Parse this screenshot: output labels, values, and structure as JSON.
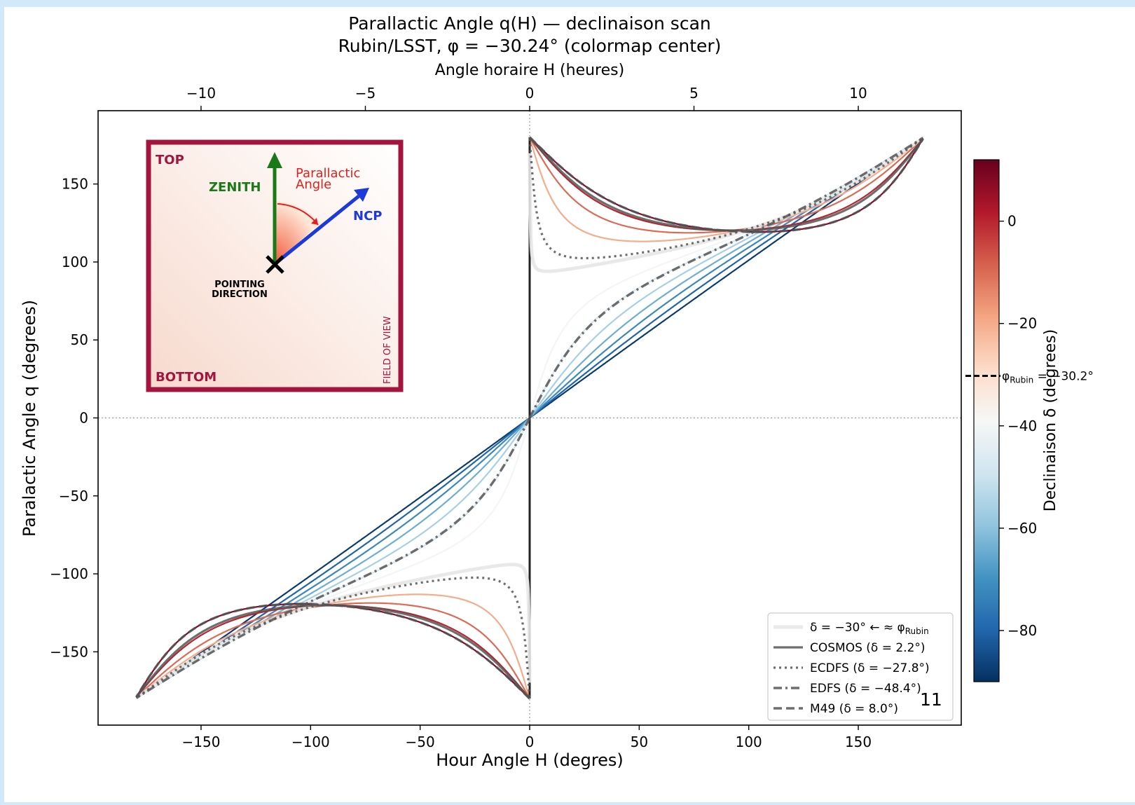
{
  "chart_data": {
    "type": "line",
    "title_line1": "Parallactic Angle q(H) — declinaison scan",
    "title_line2": "Rubin/LSST, φ = −30.24° (colormap center)",
    "top_xlabel": "Angle horaire H (heures)",
    "xlabel": "Hour Angle  H (degres)",
    "ylabel": "Paralactic Angle q (degrees)",
    "xlim": [
      -197,
      197
    ],
    "ylim": [
      -197,
      197
    ],
    "x_ticks": [
      -150,
      -100,
      -50,
      0,
      50,
      100,
      150
    ],
    "x_tick_labels": [
      "−150",
      "−100",
      "−50",
      "0",
      "50",
      "100",
      "150"
    ],
    "y_ticks": [
      -150,
      -100,
      -50,
      0,
      50,
      100,
      150
    ],
    "y_tick_labels": [
      "−150",
      "−100",
      "−50",
      "0",
      "50",
      "100",
      "150"
    ],
    "top_ticks_hours": [
      -10,
      -5,
      0,
      5,
      10
    ],
    "top_tick_labels": [
      "−10",
      "−5",
      "0",
      "5",
      "10"
    ],
    "latitude_deg": -30.24,
    "grid": false,
    "reference_lines": {
      "x0": true,
      "y0": true
    },
    "series_declinations": [
      -88,
      -80,
      -72,
      -64,
      -56,
      -48,
      -40,
      -30,
      -20,
      -10,
      0,
      8
    ],
    "highlighted_series": [
      {
        "name": "δ = −30° ← ≈ φ",
        "name_sub": "Rubin",
        "dec": -30,
        "style": "thick-faint"
      },
      {
        "name": "COSMOS (δ = 2.2°)",
        "dec": 2.2,
        "style": "solid"
      },
      {
        "name": "ECDFS (δ = −27.8°)",
        "dec": -27.8,
        "style": "dotted"
      },
      {
        "name": "EDFS (δ = −48.4°)",
        "dec": -48.4,
        "style": "dashdot"
      },
      {
        "name": "M49 (δ = 8.0°)",
        "dec": 8.0,
        "style": "dashed"
      }
    ],
    "legend_position": "lower-right",
    "colorbar": {
      "label": "Declinaison δ (degrees)",
      "range": [
        -90,
        12
      ],
      "ticks": [
        0,
        -20,
        -40,
        -60,
        -80
      ],
      "tick_labels": [
        "0",
        "−20",
        "−40",
        "−60",
        "−80"
      ],
      "marker_label": "φ",
      "marker_sub": "Rubin",
      "marker_value": " = −30.2°",
      "colors": [
        "#053061",
        "#2166ac",
        "#4393c3",
        "#92c5de",
        "#d1e5f0",
        "#f7f7f7",
        "#fddbc7",
        "#f4a582",
        "#d6604d",
        "#b2182b",
        "#67001f"
      ]
    },
    "annotation": "11"
  },
  "inset": {
    "top_label": "TOP",
    "bottom_label": "BOTTOM",
    "zenith_label": "ZENITH",
    "ncp_label": "NCP",
    "parallactic_label_1": "Parallactic",
    "parallactic_label_2": "Angle",
    "pointing_label_1": "POINTING",
    "pointing_label_2": "DIRECTION",
    "fov_label": "FIELD OF VIEW",
    "frame_color": "#a3143f",
    "zenith_color": "#1a7a1a",
    "ncp_color": "#1c3ad8",
    "angle_color": "#e0201c"
  }
}
